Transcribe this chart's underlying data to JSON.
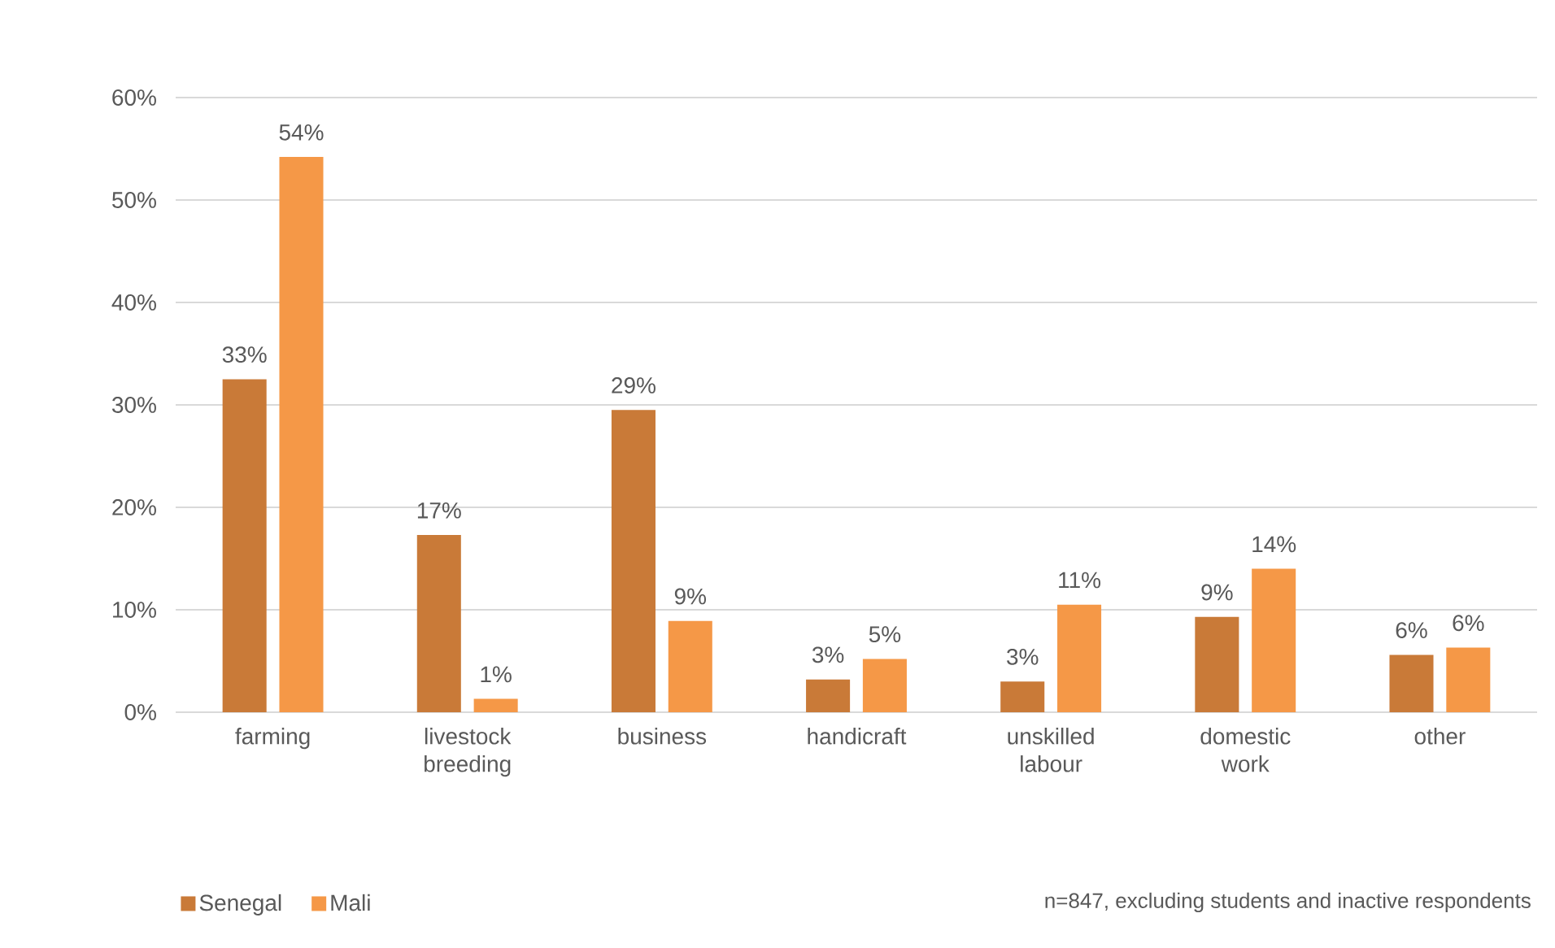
{
  "chart_data": {
    "type": "bar",
    "categories": [
      "farming",
      "livestock breeding",
      "business",
      "handicraft",
      "unskilled labour",
      "domestic work",
      "other"
    ],
    "series": [
      {
        "name": "Senegal",
        "color": "#c97a38",
        "values": [
          32.5,
          17.3,
          29.5,
          3.2,
          3.0,
          9.3,
          5.6
        ],
        "value_labels": [
          "33%",
          "17%",
          "29%",
          "3%",
          "3%",
          "9%",
          "6%"
        ]
      },
      {
        "name": "Mali",
        "color": "#f59847",
        "values": [
          54.2,
          1.3,
          8.9,
          5.2,
          10.5,
          14.0,
          6.3
        ],
        "value_labels": [
          "54%",
          "1%",
          "9%",
          "5%",
          "11%",
          "14%",
          "6%"
        ]
      }
    ],
    "ylim": [
      0,
      60
    ],
    "yticks": [
      {
        "value": 0,
        "label": "0%"
      },
      {
        "value": 10,
        "label": "10%"
      },
      {
        "value": 20,
        "label": "20%"
      },
      {
        "value": 30,
        "label": "30%"
      },
      {
        "value": 40,
        "label": "40%"
      },
      {
        "value": 50,
        "label": "50%"
      },
      {
        "value": 60,
        "label": "60%"
      }
    ],
    "grid": "y",
    "legend": "bottom left",
    "annotations": [
      "n=847, excluding students and inactive respondents"
    ]
  }
}
